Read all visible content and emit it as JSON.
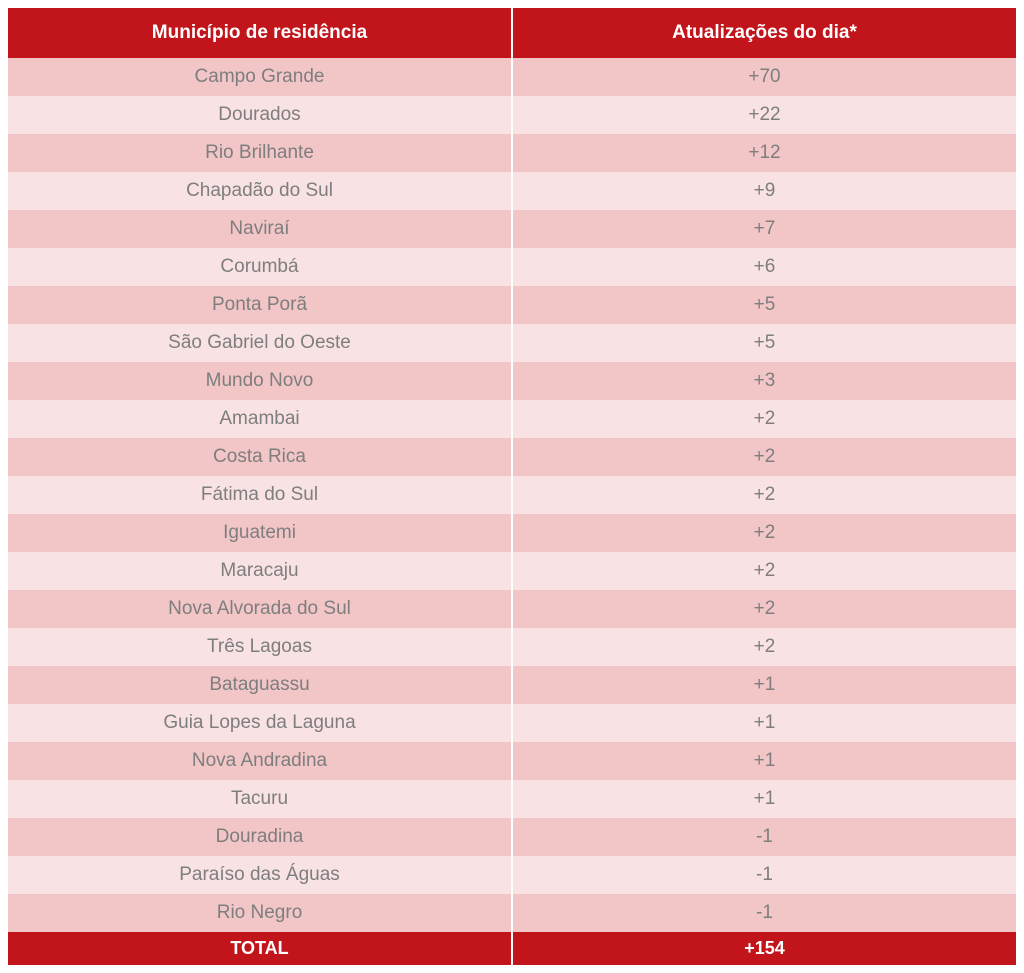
{
  "table": {
    "type": "table",
    "header_bg": "#c1151b",
    "header_text_color": "#ffffff",
    "footer_bg": "#c1151b",
    "footer_text_color": "#ffffff",
    "row_odd_bg": "#f2c6c7",
    "row_even_bg": "#f9e2e3",
    "border_color": "#ffffff",
    "data_text_color": "#7e7e7e",
    "font_family": "Arial, Helvetica, sans-serif",
    "header_fontsize": 19,
    "data_fontsize": 19,
    "columns": [
      {
        "label": "Município de residência",
        "width_pct": 50,
        "align": "center"
      },
      {
        "label": "Atualizações do dia*",
        "width_pct": 50,
        "align": "center"
      }
    ],
    "rows": [
      {
        "municipio": "Campo Grande",
        "atualizacao": "+70"
      },
      {
        "municipio": "Dourados",
        "atualizacao": "+22"
      },
      {
        "municipio": "Rio Brilhante",
        "atualizacao": "+12"
      },
      {
        "municipio": "Chapadão do Sul",
        "atualizacao": "+9"
      },
      {
        "municipio": "Naviraí",
        "atualizacao": "+7"
      },
      {
        "municipio": "Corumbá",
        "atualizacao": "+6"
      },
      {
        "municipio": "Ponta Porã",
        "atualizacao": "+5"
      },
      {
        "municipio": "São Gabriel do Oeste",
        "atualizacao": "+5"
      },
      {
        "municipio": "Mundo Novo",
        "atualizacao": "+3"
      },
      {
        "municipio": "Amambai",
        "atualizacao": "+2"
      },
      {
        "municipio": "Costa Rica",
        "atualizacao": "+2"
      },
      {
        "municipio": "Fátima do Sul",
        "atualizacao": "+2"
      },
      {
        "municipio": "Iguatemi",
        "atualizacao": "+2"
      },
      {
        "municipio": "Maracaju",
        "atualizacao": "+2"
      },
      {
        "municipio": "Nova Alvorada do Sul",
        "atualizacao": "+2"
      },
      {
        "municipio": "Três Lagoas",
        "atualizacao": "+2"
      },
      {
        "municipio": "Bataguassu",
        "atualizacao": "+1"
      },
      {
        "municipio": "Guia Lopes da Laguna",
        "atualizacao": "+1"
      },
      {
        "municipio": "Nova Andradina",
        "atualizacao": "+1"
      },
      {
        "municipio": "Tacuru",
        "atualizacao": "+1"
      },
      {
        "municipio": "Douradina",
        "atualizacao": "-1"
      },
      {
        "municipio": "Paraíso das Águas",
        "atualizacao": "-1"
      },
      {
        "municipio": "Rio Negro",
        "atualizacao": "-1"
      }
    ],
    "footer": {
      "label": "TOTAL",
      "value": "+154"
    }
  }
}
